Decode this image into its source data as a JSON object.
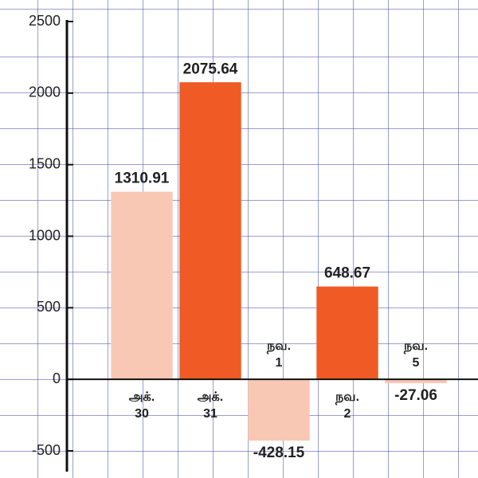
{
  "chart_data": {
    "type": "bar",
    "categories": [
      "அக்.\n30",
      "அக்.\n31",
      "நவ.\n1",
      "நவ.\n2",
      "நவ.\n5"
    ],
    "values": [
      1310.91,
      2075.64,
      -428.15,
      648.67,
      -27.06
    ],
    "colors": [
      "#f9c8b4",
      "#f05a24",
      "#f9c8b4",
      "#f05a24",
      "#f9c8b4"
    ],
    "ylim": [
      -500,
      2500
    ],
    "yticks": [
      -500,
      0,
      500,
      1000,
      1500,
      2000,
      2500
    ],
    "grid": true
  }
}
